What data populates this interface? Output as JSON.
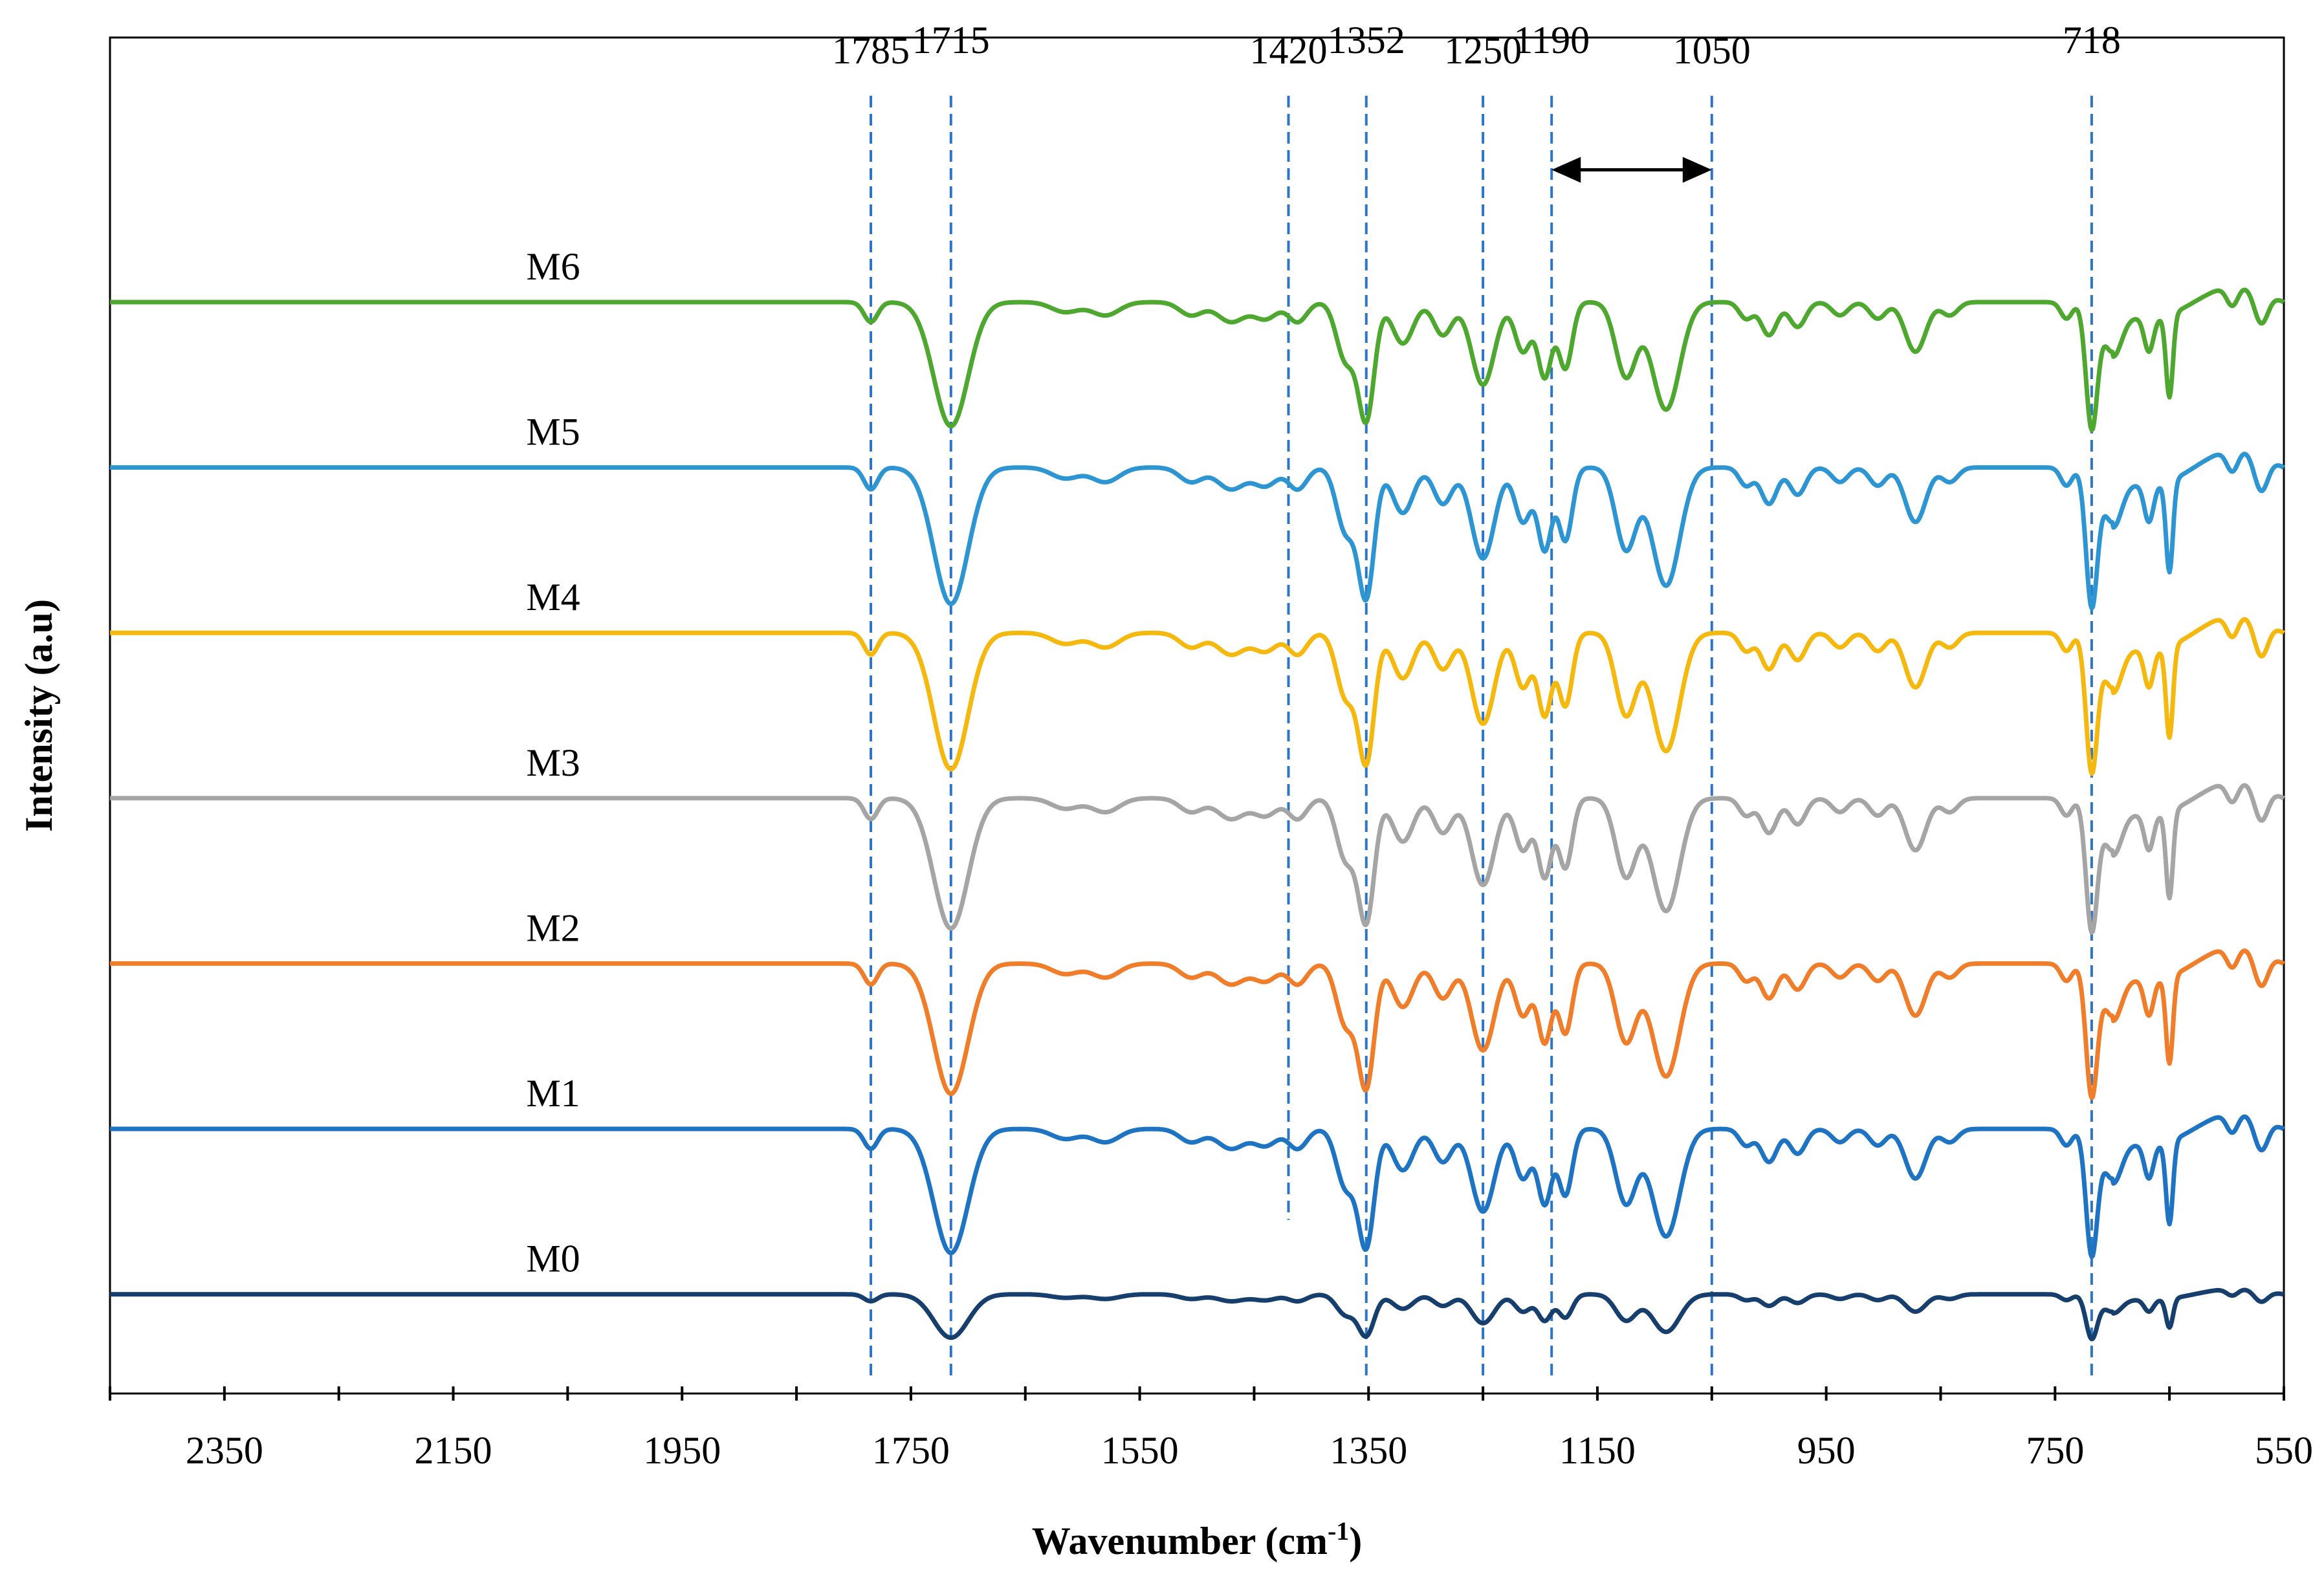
{
  "chart_data": {
    "type": "line",
    "title": "",
    "xlabel": "Wavenumber (cm",
    "xlabel_superscript": "-1",
    "xlabel_suffix": ")",
    "ylabel": "Intensity (a.u)",
    "xlim": [
      2450,
      550
    ],
    "x_reversed": true,
    "ylim": [
      -0.6,
      7.6
    ],
    "grid": false,
    "legend": "none (series labelled directly above each trace)",
    "x_ticks": [
      2350,
      2150,
      1950,
      1750,
      1550,
      1350,
      1150,
      950,
      750,
      550
    ],
    "x_minor_ticks": [
      2450,
      2250,
      2050,
      1850,
      1650,
      1450,
      1250,
      1050,
      850,
      650
    ],
    "x_tick_labels": [
      "2350",
      "2150",
      "1950",
      "1750",
      "1550",
      "1350",
      "1150",
      "950",
      "750",
      "550"
    ],
    "reference_lines": [
      {
        "x": 1785,
        "label": "1785",
        "bottom": -0.5
      },
      {
        "x": 1715,
        "label": "1715",
        "bottom": -0.5
      },
      {
        "x": 1420,
        "label": "1420",
        "bottom": 0.45
      },
      {
        "x": 1352,
        "label": "1352",
        "bottom": -0.5
      },
      {
        "x": 1250,
        "label": "1250",
        "bottom": -0.5
      },
      {
        "x": 1190,
        "label": "1190",
        "bottom": -0.5
      },
      {
        "x": 1050,
        "label": "1050",
        "bottom": -0.5
      },
      {
        "x": 718,
        "label": "718",
        "bottom": -0.5
      }
    ],
    "range_arrow": {
      "from": 1190,
      "to": 1050,
      "y": 6.8
    },
    "peak_profile": {
      "note": "Absorption features (center cm-1, relative depth, width cm-1) common to all samples; depth multiplied by each series' scale",
      "peaks": [
        [
          1785,
          0.12,
          6
        ],
        [
          1715,
          0.75,
          15
        ],
        [
          1615,
          0.06,
          12
        ],
        [
          1580,
          0.08,
          12
        ],
        [
          1505,
          0.08,
          10
        ],
        [
          1470,
          0.12,
          12
        ],
        [
          1440,
          0.1,
          10
        ],
        [
          1412,
          0.12,
          8
        ],
        [
          1370,
          0.35,
          8
        ],
        [
          1352,
          0.7,
          7
        ],
        [
          1320,
          0.25,
          9
        ],
        [
          1285,
          0.2,
          8
        ],
        [
          1250,
          0.5,
          10
        ],
        [
          1215,
          0.3,
          7
        ],
        [
          1196,
          0.45,
          6
        ],
        [
          1178,
          0.4,
          6
        ],
        [
          1125,
          0.45,
          9
        ],
        [
          1090,
          0.65,
          12
        ],
        [
          1020,
          0.1,
          6
        ],
        [
          1000,
          0.2,
          7
        ],
        [
          975,
          0.15,
          7
        ],
        [
          938,
          0.08,
          7
        ],
        [
          905,
          0.1,
          7
        ],
        [
          872,
          0.3,
          9
        ],
        [
          842,
          0.08,
          7
        ],
        [
          740,
          0.1,
          5
        ],
        [
          718,
          0.75,
          5
        ],
        [
          700,
          0.3,
          8
        ],
        [
          668,
          0.2,
          4
        ],
        [
          650,
          0.5,
          3
        ],
        [
          595,
          0.12,
          5
        ],
        [
          570,
          0.2,
          6
        ]
      ]
    },
    "series": [
      {
        "name": "M6",
        "offset": 6.0,
        "scale": 1.0,
        "color": "#4EA72E"
      },
      {
        "name": "M5",
        "offset": 5.0,
        "scale": 1.1,
        "color": "#2E95D3"
      },
      {
        "name": "M4",
        "offset": 4.0,
        "scale": 1.1,
        "color": "#F4B80E"
      },
      {
        "name": "M3",
        "offset": 3.0,
        "scale": 1.05,
        "color": "#A5A5A5"
      },
      {
        "name": "M2",
        "offset": 2.0,
        "scale": 1.05,
        "color": "#F07D2A"
      },
      {
        "name": "M1",
        "offset": 1.0,
        "scale": 1.0,
        "color": "#1E74C2"
      },
      {
        "name": "M0",
        "offset": 0.0,
        "scale": 0.35,
        "color": "#163F6E"
      }
    ],
    "colors": {
      "axis": "#000000",
      "reference_line": "#2E75C6"
    }
  }
}
